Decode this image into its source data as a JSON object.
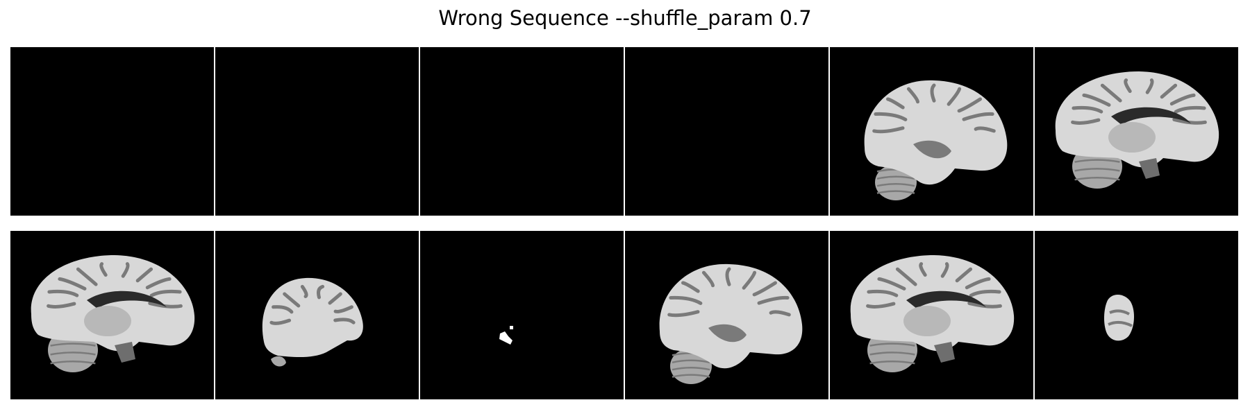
{
  "title": "Wrong Sequence --shuffle_param 0.7",
  "colors": {
    "background": "#ffffff",
    "panel_background": "#000000",
    "cortex": "#d8d8d8",
    "sulcus": "#7a7a7a",
    "cerebellum": "#a8a8a8",
    "brainstem": "#6e6e6e"
  },
  "rows": [
    {
      "panels": [
        {
          "content": "empty"
        },
        {
          "content": "empty"
        },
        {
          "content": "empty"
        },
        {
          "content": "empty"
        },
        {
          "content": "lateral-slice"
        },
        {
          "content": "midline-slice"
        }
      ]
    },
    {
      "panels": [
        {
          "content": "midline-slice"
        },
        {
          "content": "far-lateral-slice"
        },
        {
          "content": "small-fragment"
        },
        {
          "content": "lateral-slice"
        },
        {
          "content": "midline-slice"
        },
        {
          "content": "edge-fragment"
        }
      ]
    }
  ]
}
